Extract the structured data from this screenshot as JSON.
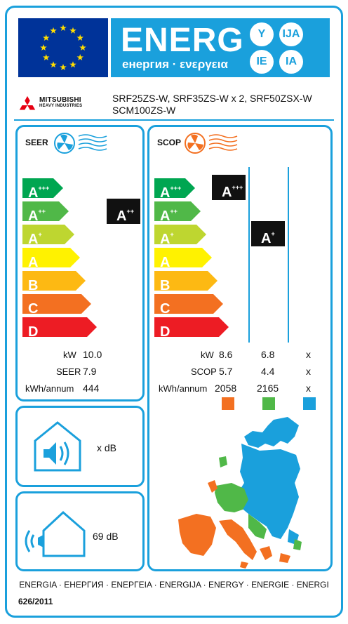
{
  "header": {
    "energy_word": "ENERG",
    "energy_sub": "енергия · ενεργεια",
    "lang_suffixes": [
      "Y",
      "IJA",
      "IE",
      "IA"
    ]
  },
  "brand": {
    "name_line1": "MITSUBISHI",
    "name_line2": "HEAVY INDUSTRIES"
  },
  "models": {
    "line1": "SRF25ZS-W, SRF35ZS-W x 2, SRF50ZSX-W",
    "line2": "SCM100ZS-W"
  },
  "cooling": {
    "label": "SEER",
    "classes": [
      {
        "base": "A",
        "sup": "+++",
        "color": "#00a651"
      },
      {
        "base": "A",
        "sup": "++",
        "color": "#50b848"
      },
      {
        "base": "A",
        "sup": "+",
        "color": "#bed630"
      },
      {
        "base": "A",
        "sup": "",
        "color": "#fff200"
      },
      {
        "base": "B",
        "sup": "",
        "color": "#fdb913"
      },
      {
        "base": "C",
        "sup": "",
        "color": "#f37021"
      },
      {
        "base": "D",
        "sup": "",
        "color": "#ed1c24"
      }
    ],
    "rating": {
      "base": "A",
      "sup": "++"
    },
    "rows": [
      {
        "label": "kW",
        "value": "10.0"
      },
      {
        "label": "SEER",
        "value": "7.9"
      },
      {
        "label": "kWh/annum",
        "value": "444"
      }
    ]
  },
  "heating": {
    "label": "SCOP",
    "rating_warm": {
      "base": "A",
      "sup": "+++"
    },
    "rating_average": {
      "base": "A",
      "sup": "+"
    },
    "rows": [
      {
        "label": "kW",
        "values": [
          "8.6",
          "6.8",
          "x"
        ]
      },
      {
        "label": "SCOP",
        "values": [
          "5.7",
          "4.4",
          "x"
        ]
      },
      {
        "label": "kWh/annum",
        "values": [
          "2058",
          "2165",
          "x"
        ]
      }
    ],
    "zone_colors": [
      "#f37021",
      "#50b848",
      "#1aa0dc"
    ]
  },
  "noise": {
    "indoor": "x dB",
    "outdoor": "69 dB"
  },
  "footer": {
    "languages": "ENERGIA · ЕНЕРГИЯ · ΕΝΕΡΓΕΙΑ · ENERGIJA · ENERGY · ENERGIE · ENERGI",
    "regulation": "626/2011"
  },
  "colors": {
    "accent": "#1aa0dc",
    "eu_blue": "#003399",
    "eu_star": "#ffdd00"
  }
}
